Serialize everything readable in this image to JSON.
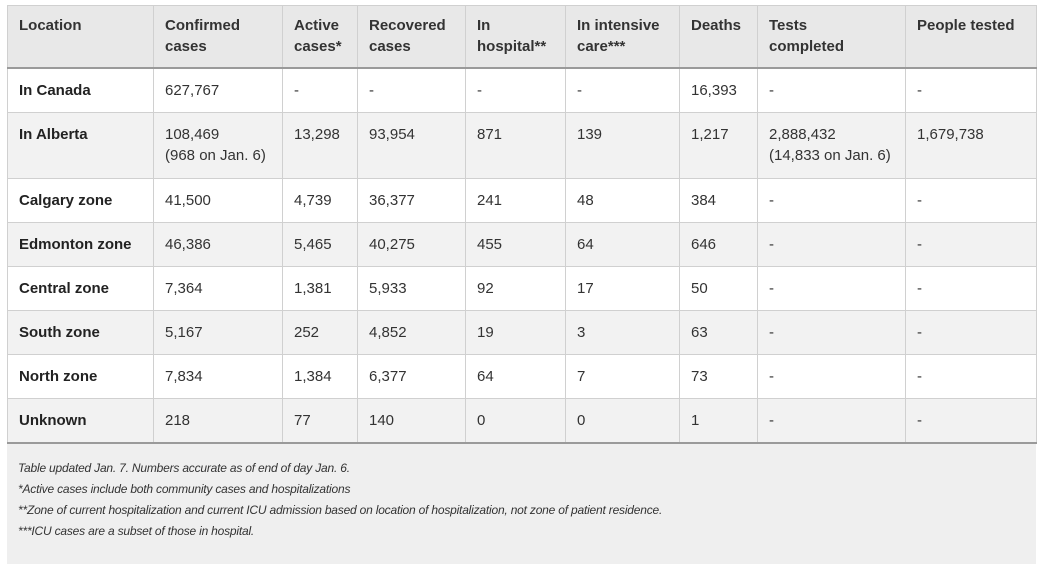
{
  "table": {
    "headers": [
      {
        "line1": "Location",
        "line2": ""
      },
      {
        "line1": "Confirmed",
        "line2": "cases"
      },
      {
        "line1": "Active",
        "line2": "cases*"
      },
      {
        "line1": "Recovered",
        "line2": "cases"
      },
      {
        "line1": "In",
        "line2": "hospital**"
      },
      {
        "line1": "In intensive",
        "line2": "care***"
      },
      {
        "line1": "Deaths",
        "line2": ""
      },
      {
        "line1": "Tests",
        "line2": "completed"
      },
      {
        "line1": "People tested",
        "line2": ""
      }
    ],
    "rows": [
      {
        "location": "In Canada",
        "confirmed": "627,767",
        "confirmed_sub": "",
        "active": "-",
        "recovered": "-",
        "hospital": "-",
        "icu": "-",
        "deaths": "16,393",
        "tests": "-",
        "tests_sub": "",
        "people": "-"
      },
      {
        "location": "In Alberta",
        "confirmed": "108,469",
        "confirmed_sub": "(968 on Jan. 6)",
        "active": "13,298",
        "recovered": "93,954",
        "hospital": "871",
        "icu": "139",
        "deaths": "1,217",
        "tests": "2,888,432",
        "tests_sub": "(14,833 on Jan. 6)",
        "people": "1,679,738"
      },
      {
        "location": "Calgary zone",
        "confirmed": "41,500",
        "confirmed_sub": "",
        "active": "4,739",
        "recovered": "36,377",
        "hospital": "241",
        "icu": "48",
        "deaths": "384",
        "tests": "-",
        "tests_sub": "",
        "people": "-"
      },
      {
        "location": "Edmonton zone",
        "confirmed": "46,386",
        "confirmed_sub": "",
        "active": "5,465",
        "recovered": "40,275",
        "hospital": "455",
        "icu": "64",
        "deaths": "646",
        "tests": "-",
        "tests_sub": "",
        "people": "-"
      },
      {
        "location": "Central zone",
        "confirmed": "7,364",
        "confirmed_sub": "",
        "active": "1,381",
        "recovered": "5,933",
        "hospital": "92",
        "icu": "17",
        "deaths": "50",
        "tests": "-",
        "tests_sub": "",
        "people": "-"
      },
      {
        "location": "South zone",
        "confirmed": "5,167",
        "confirmed_sub": "",
        "active": "252",
        "recovered": "4,852",
        "hospital": "19",
        "icu": "3",
        "deaths": "63",
        "tests": "-",
        "tests_sub": "",
        "people": "-"
      },
      {
        "location": "North zone",
        "confirmed": "7,834",
        "confirmed_sub": "",
        "active": "1,384",
        "recovered": "6,377",
        "hospital": "64",
        "icu": "7",
        "deaths": "73",
        "tests": "-",
        "tests_sub": "",
        "people": "-"
      },
      {
        "location": "Unknown",
        "confirmed": "218",
        "confirmed_sub": "",
        "active": "77",
        "recovered": "140",
        "hospital": "0",
        "icu": "0",
        "deaths": "1",
        "tests": "-",
        "tests_sub": "",
        "people": "-"
      }
    ]
  },
  "notes": [
    "Table updated Jan. 7. Numbers accurate as of end of day Jan. 6.",
    "*Active cases include both community cases and hospitalizations",
    "**Zone of current hospitalization and current ICU admission based on location of hospitalization, not zone of patient residence.",
    "***ICU cases are a subset of those in hospital."
  ]
}
